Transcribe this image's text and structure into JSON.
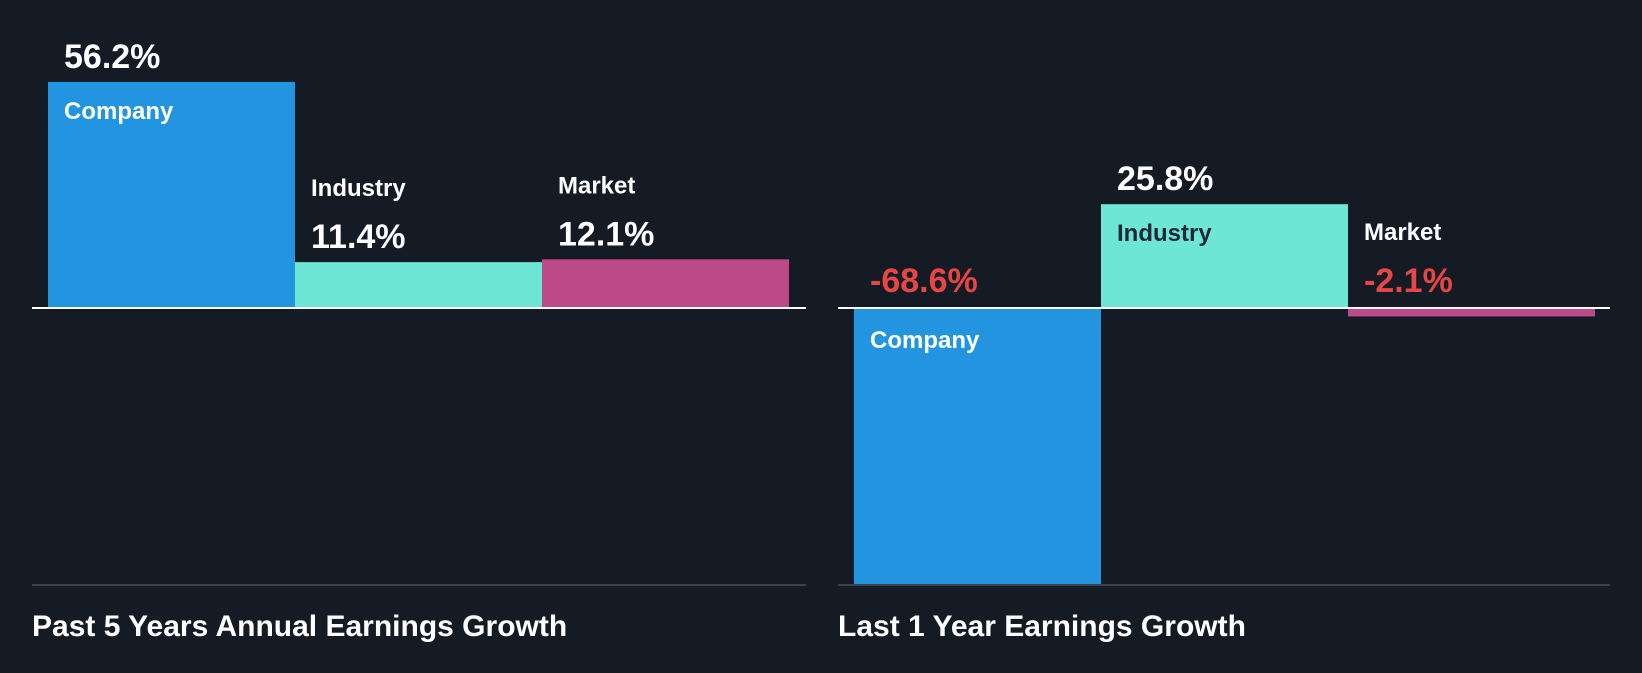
{
  "colors": {
    "background": "#151b24",
    "company": "#2394e0",
    "industry": "#6ee6d6",
    "market": "#bc4a88",
    "baseline": "#ffffff",
    "bottom_rule": "#3b424d",
    "positive_text": "#ffffff",
    "negative_text": "#e84545",
    "label_on_dark": "#ffffff",
    "label_on_light": "#1e2a33"
  },
  "chart_data": [
    {
      "type": "bar",
      "title": "Past 5 Years Annual Earnings Growth",
      "categories": [
        "Company",
        "Industry",
        "Market"
      ],
      "values": [
        56.2,
        11.4,
        12.1
      ],
      "value_labels": [
        "56.2%",
        "11.4%",
        "12.1%"
      ],
      "unit": "%"
    },
    {
      "type": "bar",
      "title": "Last 1 Year Earnings Growth",
      "categories": [
        "Company",
        "Industry",
        "Market"
      ],
      "values": [
        -68.6,
        25.8,
        -2.1
      ],
      "value_labels": [
        "-68.6%",
        "25.8%",
        "-2.1%"
      ],
      "unit": "%"
    }
  ]
}
